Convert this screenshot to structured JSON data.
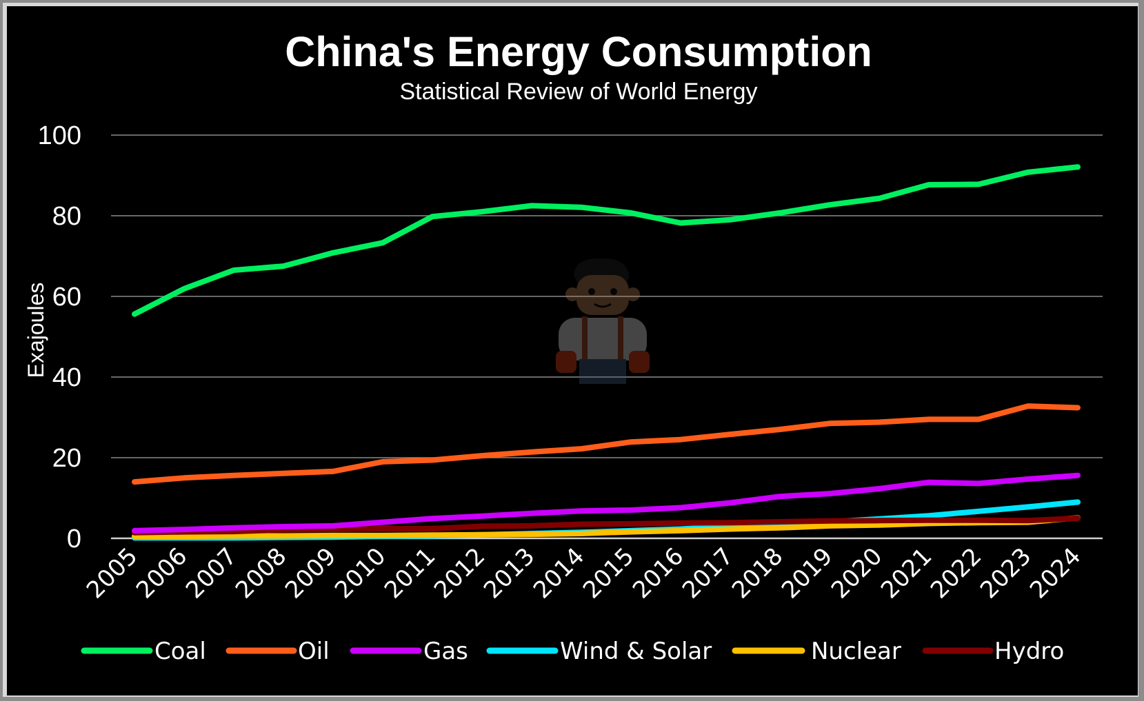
{
  "chart_data": {
    "type": "line",
    "title": "China's Energy Consumption",
    "subtitle": "Statistical Review of World Energy",
    "xlabel": "",
    "ylabel": "Exajoules",
    "ylim": [
      0,
      100
    ],
    "yticks": [
      0,
      20,
      40,
      60,
      80,
      100
    ],
    "grid": true,
    "legend_position": "bottom",
    "x": [
      "2005",
      "2006",
      "2007",
      "2008",
      "2009",
      "2010",
      "2011",
      "2012",
      "2013",
      "2014",
      "2015",
      "2016",
      "2017",
      "2018",
      "2019",
      "2020",
      "2021",
      "2022",
      "2023",
      "2024"
    ],
    "series": [
      {
        "name": "Coal",
        "color": "#00f060",
        "values": [
          55.6,
          61.9,
          66.5,
          67.5,
          70.8,
          73.3,
          79.8,
          81.0,
          82.5,
          82.1,
          80.7,
          78.2,
          79.0,
          80.7,
          82.7,
          84.3,
          87.7,
          87.8,
          90.8,
          92.1
        ]
      },
      {
        "name": "Oil",
        "color": "#ff5e1a",
        "values": [
          14.0,
          15.0,
          15.6,
          16.1,
          16.6,
          19.0,
          19.4,
          20.5,
          21.4,
          22.2,
          23.9,
          24.5,
          25.8,
          27.0,
          28.5,
          28.8,
          29.5,
          29.5,
          32.8,
          32.4
        ]
      },
      {
        "name": "Gas",
        "color": "#cc00ff",
        "values": [
          1.9,
          2.2,
          2.6,
          2.9,
          3.1,
          4.0,
          4.9,
          5.5,
          6.2,
          6.8,
          7.0,
          7.6,
          8.8,
          10.4,
          11.1,
          12.3,
          13.9,
          13.6,
          14.7,
          15.6
        ]
      },
      {
        "name": "Wind & Solar",
        "color": "#00e5ff",
        "values": [
          0.1,
          0.1,
          0.1,
          0.2,
          0.3,
          0.5,
          0.6,
          0.9,
          1.2,
          1.5,
          1.9,
          2.3,
          3.0,
          3.6,
          4.1,
          4.8,
          5.6,
          6.7,
          7.8,
          9.0
        ]
      },
      {
        "name": "Nuclear",
        "color": "#ffc000",
        "values": [
          0.5,
          0.5,
          0.6,
          0.6,
          0.7,
          0.7,
          0.8,
          0.9,
          1.0,
          1.2,
          1.6,
          1.9,
          2.3,
          2.6,
          3.1,
          3.3,
          3.7,
          3.9,
          4.0,
          5.1
        ]
      },
      {
        "name": "Hydro",
        "color": "#800000",
        "values": [
          1.4,
          1.6,
          1.7,
          2.1,
          2.2,
          2.4,
          2.4,
          3.0,
          3.1,
          3.5,
          3.6,
          3.8,
          3.9,
          4.1,
          4.3,
          4.4,
          4.5,
          4.5,
          4.4,
          5.0
        ]
      }
    ]
  },
  "watermark": {
    "icon": "mascot-worker-icon"
  }
}
